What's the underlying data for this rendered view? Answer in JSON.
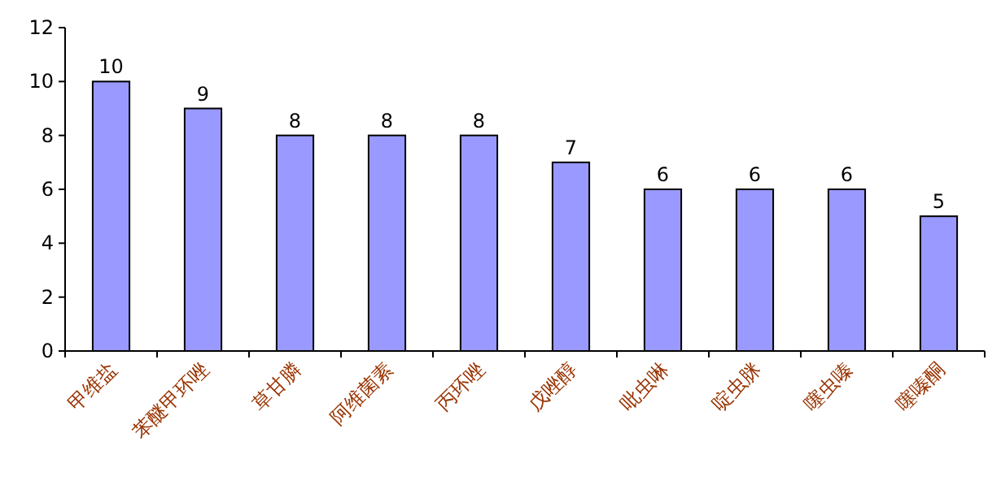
{
  "chart_data": {
    "type": "bar",
    "categories": [
      "甲维盐",
      "苯醚甲环唑",
      "草甘膦",
      "阿维菌素",
      "丙环唑",
      "戊唑醇",
      "吡虫啉",
      "啶虫脒",
      "噻虫嗪",
      "噻嗪酮"
    ],
    "values": [
      10,
      9,
      8,
      8,
      8,
      7,
      6,
      6,
      6,
      5
    ],
    "color": "#9999ff",
    "ylim": [
      0,
      12
    ],
    "yticks": [
      0,
      2,
      4,
      6,
      8,
      10,
      12
    ],
    "data_labels": true
  }
}
